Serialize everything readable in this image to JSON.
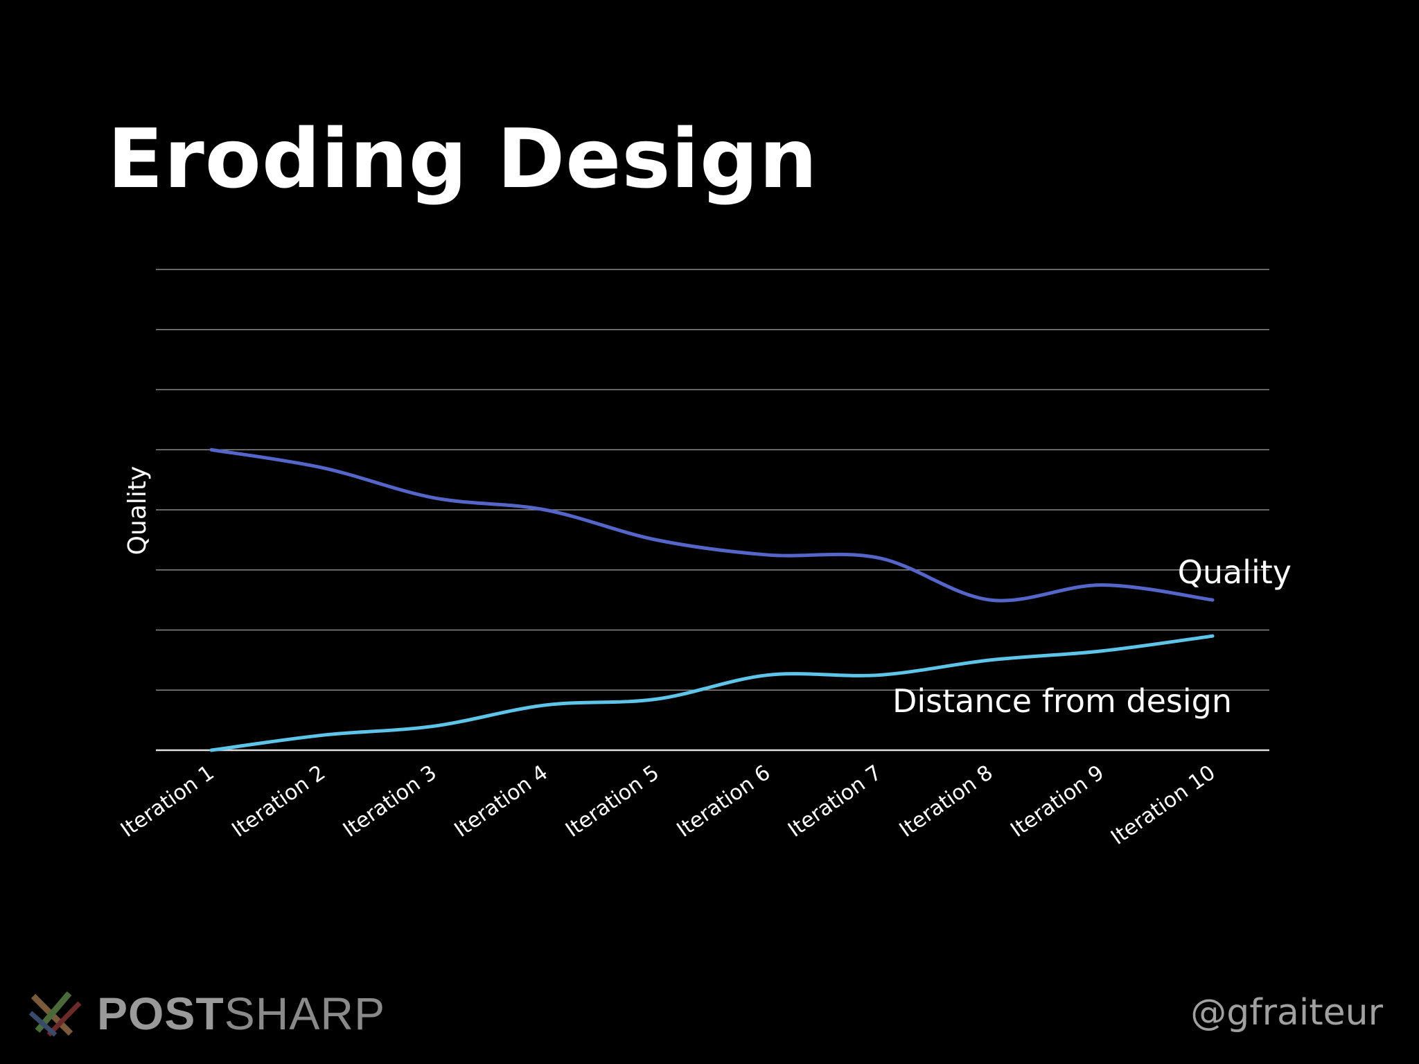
{
  "slide": {
    "title": "Eroding Design",
    "handle": "@gfraiteur",
    "logo": {
      "bold": "POST",
      "light": "SHARP"
    }
  },
  "chart_data": {
    "type": "line",
    "title": "",
    "xlabel": "",
    "ylabel": "Quality",
    "categories": [
      "Iteration 1",
      "Iteration 2",
      "Iteration 3",
      "Iteration 4",
      "Iteration 5",
      "Iteration 6",
      "Iteration 7",
      "Iteration 8",
      "Iteration 9",
      "Iteration 10"
    ],
    "ylim": [
      0,
      8
    ],
    "grid": true,
    "series": [
      {
        "name": "Quality",
        "color": "#5566c8",
        "values": [
          5.0,
          4.7,
          4.2,
          4.0,
          3.5,
          3.25,
          3.2,
          2.5,
          2.75,
          2.5
        ]
      },
      {
        "name": "Distance from design",
        "color": "#5ec4e8",
        "values": [
          0.0,
          0.25,
          0.4,
          0.75,
          0.85,
          1.25,
          1.25,
          1.5,
          1.65,
          1.9
        ]
      }
    ]
  }
}
